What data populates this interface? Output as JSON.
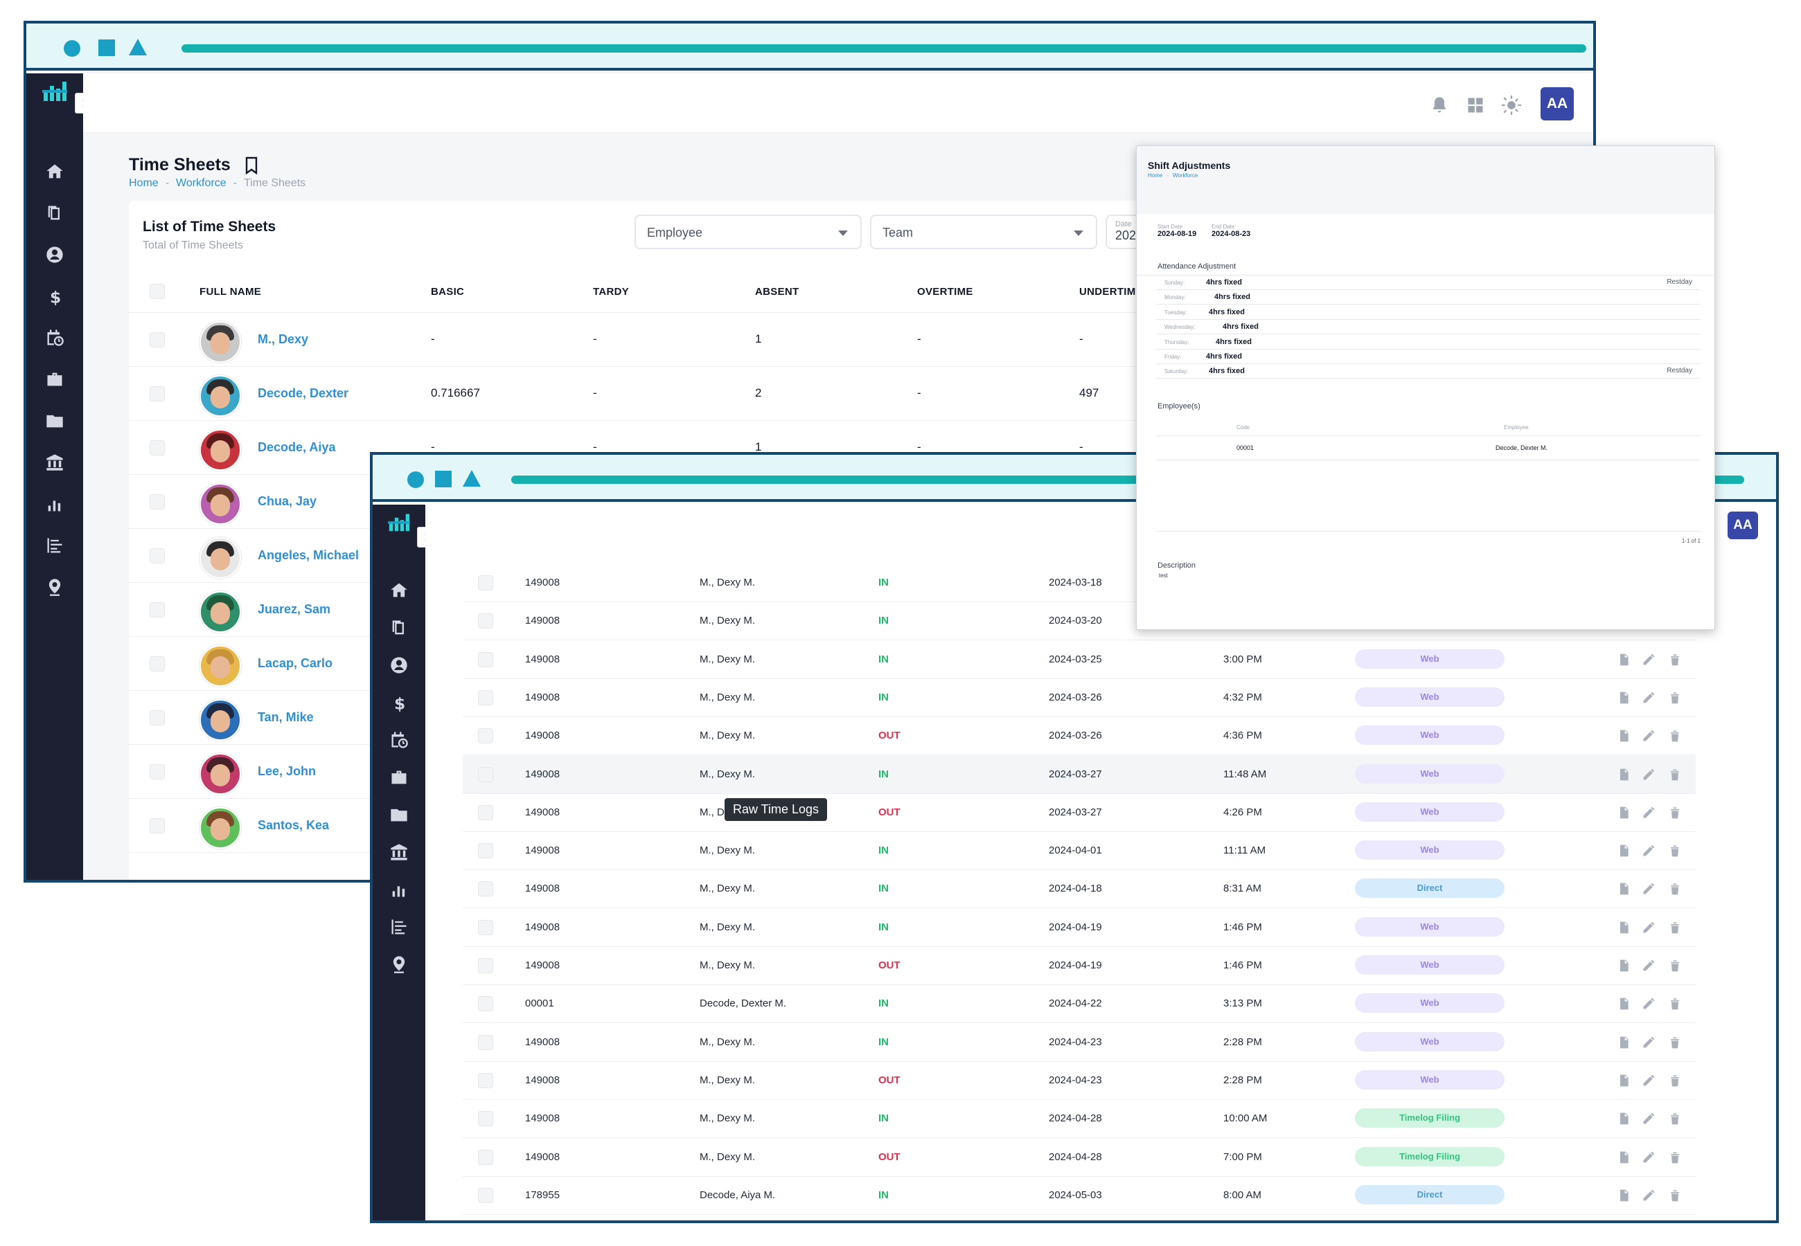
{
  "window_a": {
    "avatar_initials": "AA",
    "page_title": "Time Sheets",
    "breadcrumb": [
      "Home",
      "Workforce",
      "Time Sheets"
    ],
    "card_title": "List of Time Sheets",
    "card_subtitle": "Total of Time Sheets",
    "filters": {
      "employee": "Employee",
      "team": "Team",
      "date_label": "Date",
      "date_value": "202"
    },
    "columns": [
      "FULL NAME",
      "BASIC",
      "TARDY",
      "ABSENT",
      "OVERTIME",
      "UNDERTIM"
    ],
    "rows": [
      {
        "name": "M., Dexy",
        "basic": "-",
        "tardy": "-",
        "absent": "1",
        "overtime": "-",
        "undertime": "-"
      },
      {
        "name": "Decode, Dexter",
        "basic": "0.716667",
        "tardy": "-",
        "absent": "2",
        "overtime": "-",
        "undertime": "497"
      },
      {
        "name": "Decode, Aiya",
        "basic": "-",
        "tardy": "-",
        "absent": "1",
        "overtime": "-",
        "undertime": "-"
      },
      {
        "name": "Chua, Jay",
        "basic": "",
        "tardy": "",
        "absent": "",
        "overtime": "",
        "undertime": ""
      },
      {
        "name": "Angeles, Michael",
        "basic": "",
        "tardy": "",
        "absent": "",
        "overtime": "",
        "undertime": ""
      },
      {
        "name": "Juarez, Sam",
        "basic": "",
        "tardy": "",
        "absent": "",
        "overtime": "",
        "undertime": ""
      },
      {
        "name": "Lacap, Carlo",
        "basic": "",
        "tardy": "",
        "absent": "",
        "overtime": "",
        "undertime": ""
      },
      {
        "name": "Tan, Mike",
        "basic": "",
        "tardy": "",
        "absent": "",
        "overtime": "",
        "undertime": ""
      },
      {
        "name": "Lee, John",
        "basic": "",
        "tardy": "",
        "absent": "",
        "overtime": "",
        "undertime": ""
      },
      {
        "name": "Santos, Kea",
        "basic": "",
        "tardy": "",
        "absent": "",
        "overtime": "",
        "undertime": ""
      }
    ]
  },
  "window_b": {
    "avatar_initials": "AA",
    "tooltip": "Raw Time Logs",
    "rows": [
      {
        "code": "149008",
        "name": "M., Dexy M.",
        "dir": "IN",
        "date": "2024-03-18",
        "time": "",
        "source": ""
      },
      {
        "code": "149008",
        "name": "M., Dexy M.",
        "dir": "IN",
        "date": "2024-03-20",
        "time": "",
        "source": ""
      },
      {
        "code": "149008",
        "name": "M., Dexy M.",
        "dir": "IN",
        "date": "2024-03-25",
        "time": "3:00 PM",
        "source": "Web"
      },
      {
        "code": "149008",
        "name": "M., Dexy M.",
        "dir": "IN",
        "date": "2024-03-26",
        "time": "4:32 PM",
        "source": "Web"
      },
      {
        "code": "149008",
        "name": "M., Dexy M.",
        "dir": "OUT",
        "date": "2024-03-26",
        "time": "4:36 PM",
        "source": "Web"
      },
      {
        "code": "149008",
        "name": "M., Dexy M.",
        "dir": "IN",
        "date": "2024-03-27",
        "time": "11:48 AM",
        "source": "Web"
      },
      {
        "code": "149008",
        "name": "M., Dexy M.",
        "dir": "OUT",
        "date": "2024-03-27",
        "time": "4:26 PM",
        "source": "Web"
      },
      {
        "code": "149008",
        "name": "M., Dexy M.",
        "dir": "IN",
        "date": "2024-04-01",
        "time": "11:11 AM",
        "source": "Web"
      },
      {
        "code": "149008",
        "name": "M., Dexy M.",
        "dir": "IN",
        "date": "2024-04-18",
        "time": "8:31 AM",
        "source": "Direct"
      },
      {
        "code": "149008",
        "name": "M., Dexy M.",
        "dir": "IN",
        "date": "2024-04-19",
        "time": "1:46 PM",
        "source": "Web"
      },
      {
        "code": "149008",
        "name": "M., Dexy M.",
        "dir": "OUT",
        "date": "2024-04-19",
        "time": "1:46 PM",
        "source": "Web"
      },
      {
        "code": "00001",
        "name": "Decode, Dexter M.",
        "dir": "IN",
        "date": "2024-04-22",
        "time": "3:13 PM",
        "source": "Web"
      },
      {
        "code": "149008",
        "name": "M., Dexy M.",
        "dir": "IN",
        "date": "2024-04-23",
        "time": "2:28 PM",
        "source": "Web"
      },
      {
        "code": "149008",
        "name": "M., Dexy M.",
        "dir": "OUT",
        "date": "2024-04-23",
        "time": "2:28 PM",
        "source": "Web"
      },
      {
        "code": "149008",
        "name": "M., Dexy M.",
        "dir": "IN",
        "date": "2024-04-28",
        "time": "10:00 AM",
        "source": "Timelog Filing"
      },
      {
        "code": "149008",
        "name": "M., Dexy M.",
        "dir": "OUT",
        "date": "2024-04-28",
        "time": "7:00 PM",
        "source": "Timelog Filing"
      },
      {
        "code": "178955",
        "name": "Decode, Aiya M.",
        "dir": "IN",
        "date": "2024-05-03",
        "time": "8:00 AM",
        "source": "Direct"
      }
    ]
  },
  "modal": {
    "title": "Shift Adjustments",
    "breadcrumb": [
      "Home",
      "Workforce"
    ],
    "start_label": "Start Date",
    "start_value": "2024-08-19",
    "end_label": "End Date",
    "end_value": "2024-08-23",
    "attendance_title": "Attendance Adjustment",
    "days": [
      {
        "day": "Sunday:",
        "value": "4hrs fixed",
        "restday": "Restday"
      },
      {
        "day": "Monday:",
        "value": "4hrs fixed",
        "restday": ""
      },
      {
        "day": "Tuesday:",
        "value": "4hrs fixed",
        "restday": ""
      },
      {
        "day": "Wednesday:",
        "value": "4hrs fixed",
        "restday": ""
      },
      {
        "day": "Thursday:",
        "value": "4hrs fixed",
        "restday": ""
      },
      {
        "day": "Friday:",
        "value": "4hrs fixed",
        "restday": ""
      },
      {
        "day": "Saturday:",
        "value": "4hrs fixed",
        "restday": "Restday"
      }
    ],
    "employees_title": "Employee(s)",
    "emp_col_code": "Code",
    "emp_col_employee": "Employee",
    "emp_code": "00001",
    "emp_name": "Decode, Dexter M.",
    "pagination": "1-1 of 1",
    "description_title": "Description",
    "description_value": "test"
  }
}
